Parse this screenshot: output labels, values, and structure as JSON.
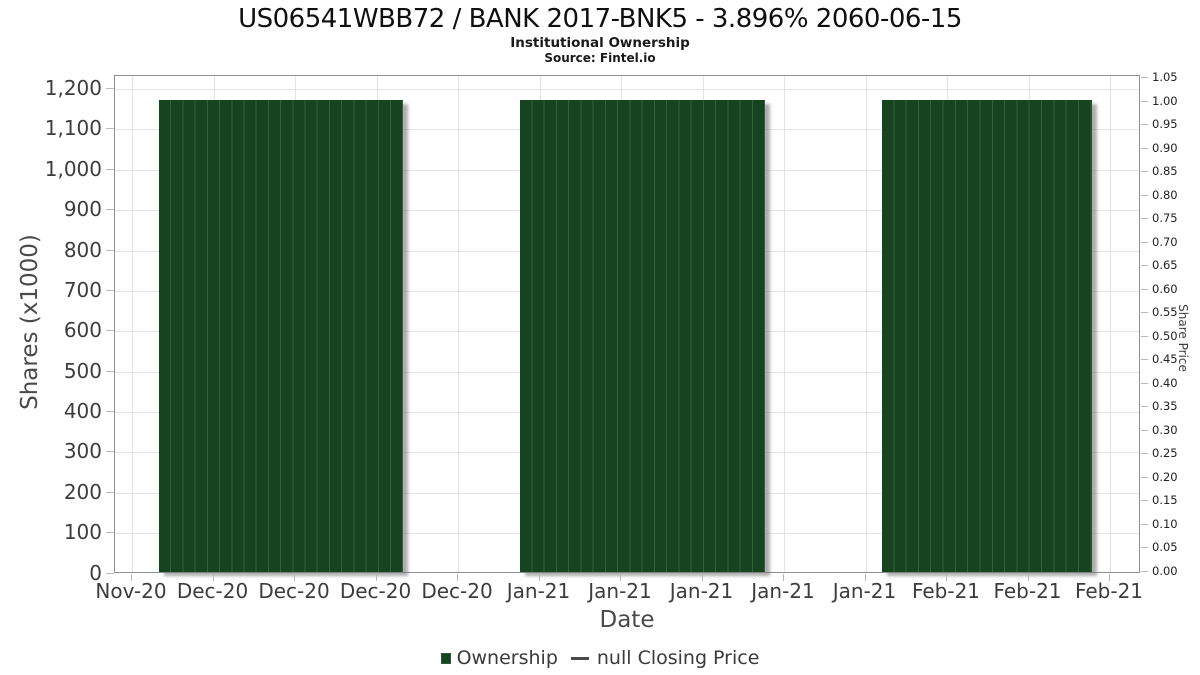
{
  "colors": {
    "bar_fill": "#174420",
    "bar_stripe": "#31603a",
    "bar_shadow": "rgba(120,120,120,0.6)",
    "grid": "#e4e4e4",
    "plot_border": "#909090",
    "tick": "#b9b9b9",
    "label_text": "#3d3d3d",
    "legend_line": "#4a4a4a"
  },
  "chart_data": {
    "type": "bar",
    "title": "US06541WBB72 / BANK 2017-BNK5 - 3.896% 2060-06-15",
    "subtitle": "Institutional Ownership",
    "source": "Source: Fintel.io",
    "xlabel": "Date",
    "ylabel": "Shares (x1000)",
    "ylabel_right": "Share Price",
    "x_tick_labels": [
      "Nov-20",
      "Dec-20",
      "Dec-20",
      "Dec-20",
      "Dec-20",
      "Jan-21",
      "Jan-21",
      "Jan-21",
      "Jan-21",
      "Jan-21",
      "Feb-21",
      "Feb-21",
      "Feb-21"
    ],
    "y_left_tick_labels": [
      "0",
      "100",
      "200",
      "300",
      "400",
      "500",
      "600",
      "700",
      "800",
      "900",
      "1,000",
      "1,100",
      "1,200"
    ],
    "y_left_range": [
      0,
      1200
    ],
    "y_right_tick_labels": [
      "0.00",
      "0.05",
      "0.10",
      "0.15",
      "0.20",
      "0.25",
      "0.30",
      "0.35",
      "0.40",
      "0.45",
      "0.50",
      "0.55",
      "0.60",
      "0.65",
      "0.70",
      "0.75",
      "0.80",
      "0.85",
      "0.90",
      "0.95",
      "1.00",
      "1.05"
    ],
    "y_right_range": [
      0,
      1.05
    ],
    "grid": true,
    "legend_position": "bottom",
    "series": [
      {
        "name": "Ownership",
        "type": "bar",
        "color": "#174420",
        "groups": [
          {
            "x0": 0.044,
            "x1": 0.282,
            "bar_count": 20,
            "value_x1000": 1170
          },
          {
            "x0": 0.396,
            "x1": 0.635,
            "bar_count": 20,
            "value_x1000": 1170
          },
          {
            "x0": 0.749,
            "x1": 0.953,
            "bar_count": 17,
            "value_x1000": 1170
          }
        ]
      },
      {
        "name": "null Closing Price",
        "type": "line",
        "color": "#4a4a4a",
        "values": []
      }
    ]
  }
}
